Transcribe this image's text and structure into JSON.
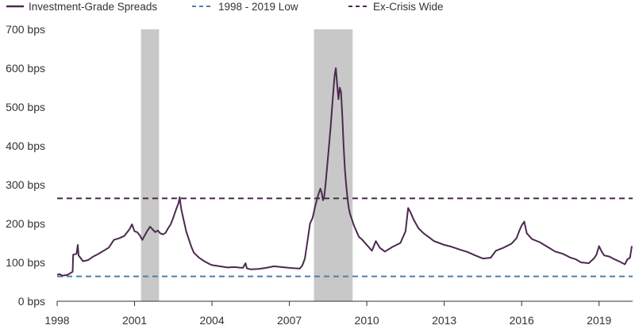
{
  "chart_data": {
    "type": "line",
    "title": "",
    "xlabel": "",
    "ylabel": "",
    "xlim": [
      1998.0,
      2020.3
    ],
    "ylim": [
      0,
      700
    ],
    "x_ticks": [
      1998,
      2001,
      2004,
      2007,
      2010,
      2013,
      2016,
      2019
    ],
    "x_tick_labels": [
      "1998",
      "2001",
      "2004",
      "2007",
      "2010",
      "2013",
      "2016",
      "2019"
    ],
    "y_ticks": [
      0,
      100,
      200,
      300,
      400,
      500,
      600,
      700
    ],
    "y_tick_labels": [
      "0 bps",
      "100 bps",
      "200 bps",
      "300 bps",
      "400 bps",
      "500 bps",
      "600 bps",
      "700 bps"
    ],
    "grid": false,
    "legend_position": "top-left",
    "shaded_periods": [
      {
        "start": 2001.25,
        "end": 2001.95
      },
      {
        "start": 2007.95,
        "end": 2009.45
      }
    ],
    "series": [
      {
        "name": "Investment-Grade Spreads",
        "style": "solid",
        "color": "#4b2a4f",
        "x": [
          1998.0,
          1998.1,
          1998.2,
          1998.3,
          1998.4,
          1998.5,
          1998.6,
          1998.62,
          1998.75,
          1998.8,
          1998.83,
          1998.9,
          1999.0,
          1999.2,
          1999.4,
          1999.6,
          1999.8,
          2000.0,
          2000.2,
          2000.4,
          2000.6,
          2000.8,
          2000.9,
          2001.0,
          2001.1,
          2001.2,
          2001.3,
          2001.4,
          2001.5,
          2001.6,
          2001.7,
          2001.8,
          2001.9,
          2002.0,
          2002.1,
          2002.2,
          2002.3,
          2002.4,
          2002.5,
          2002.6,
          2002.7,
          2002.75,
          2002.8,
          2002.85,
          2002.9,
          2003.0,
          2003.1,
          2003.2,
          2003.3,
          2003.5,
          2003.7,
          2003.9,
          2004.0,
          2004.3,
          2004.6,
          2004.9,
          2005.0,
          2005.2,
          2005.3,
          2005.35,
          2005.5,
          2005.8,
          2006.1,
          2006.4,
          2006.7,
          2007.0,
          2007.2,
          2007.4,
          2007.5,
          2007.6,
          2007.7,
          2007.8,
          2007.9,
          2008.0,
          2008.1,
          2008.2,
          2008.25,
          2008.3,
          2008.35,
          2008.4,
          2008.5,
          2008.6,
          2008.7,
          2008.75,
          2008.8,
          2008.85,
          2008.9,
          2008.95,
          2009.0,
          2009.05,
          2009.1,
          2009.15,
          2009.2,
          2009.25,
          2009.3,
          2009.35,
          2009.4,
          2009.45,
          2009.5,
          2009.6,
          2009.7,
          2009.8,
          2010.0,
          2010.2,
          2010.35,
          2010.5,
          2010.7,
          2011.0,
          2011.3,
          2011.5,
          2011.6,
          2011.7,
          2011.8,
          2011.9,
          2012.0,
          2012.2,
          2012.4,
          2012.6,
          2012.8,
          2013.0,
          2013.3,
          2013.6,
          2013.9,
          2014.2,
          2014.5,
          2014.8,
          2015.0,
          2015.3,
          2015.6,
          2015.8,
          2015.9,
          2016.0,
          2016.1,
          2016.2,
          2016.4,
          2016.7,
          2017.0,
          2017.3,
          2017.6,
          2017.9,
          2018.1,
          2018.3,
          2018.6,
          2018.8,
          2018.9,
          2019.0,
          2019.1,
          2019.2,
          2019.4,
          2019.6,
          2019.8,
          2020.0,
          2020.1,
          2020.2,
          2020.27
        ],
        "values": [
          68,
          70,
          66,
          67,
          68,
          72,
          76,
          120,
          122,
          145,
          118,
          112,
          103,
          106,
          115,
          122,
          130,
          138,
          158,
          162,
          168,
          185,
          198,
          180,
          178,
          170,
          158,
          170,
          182,
          192,
          185,
          178,
          182,
          175,
          172,
          176,
          188,
          198,
          215,
          235,
          252,
          268,
          240,
          225,
          210,
          180,
          160,
          140,
          125,
          112,
          103,
          96,
          93,
          90,
          87,
          88,
          87,
          86,
          98,
          85,
          82,
          83,
          86,
          90,
          88,
          86,
          85,
          84,
          92,
          110,
          155,
          200,
          215,
          245,
          270,
          290,
          280,
          260,
          270,
          300,
          375,
          450,
          540,
          580,
          600,
          560,
          520,
          550,
          540,
          480,
          400,
          340,
          300,
          265,
          240,
          225,
          215,
          205,
          195,
          180,
          165,
          160,
          145,
          130,
          155,
          138,
          128,
          140,
          150,
          180,
          240,
          228,
          212,
          200,
          188,
          175,
          165,
          155,
          150,
          145,
          140,
          133,
          127,
          118,
          110,
          112,
          130,
          138,
          148,
          162,
          180,
          195,
          205,
          175,
          160,
          152,
          140,
          128,
          122,
          112,
          108,
          100,
          98,
          110,
          120,
          142,
          128,
          118,
          115,
          108,
          102,
          95,
          108,
          112,
          142
        ]
      },
      {
        "name": "1998 - 2019 Low",
        "style": "dashed",
        "color": "#4a7fb0",
        "x": [
          1998.0,
          2020.3
        ],
        "values": [
          64,
          64
        ]
      },
      {
        "name": "Ex-Crisis Wide",
        "style": "dashed",
        "color": "#4b2a4f",
        "x": [
          1998.0,
          2020.3
        ],
        "values": [
          265,
          265
        ]
      }
    ]
  }
}
